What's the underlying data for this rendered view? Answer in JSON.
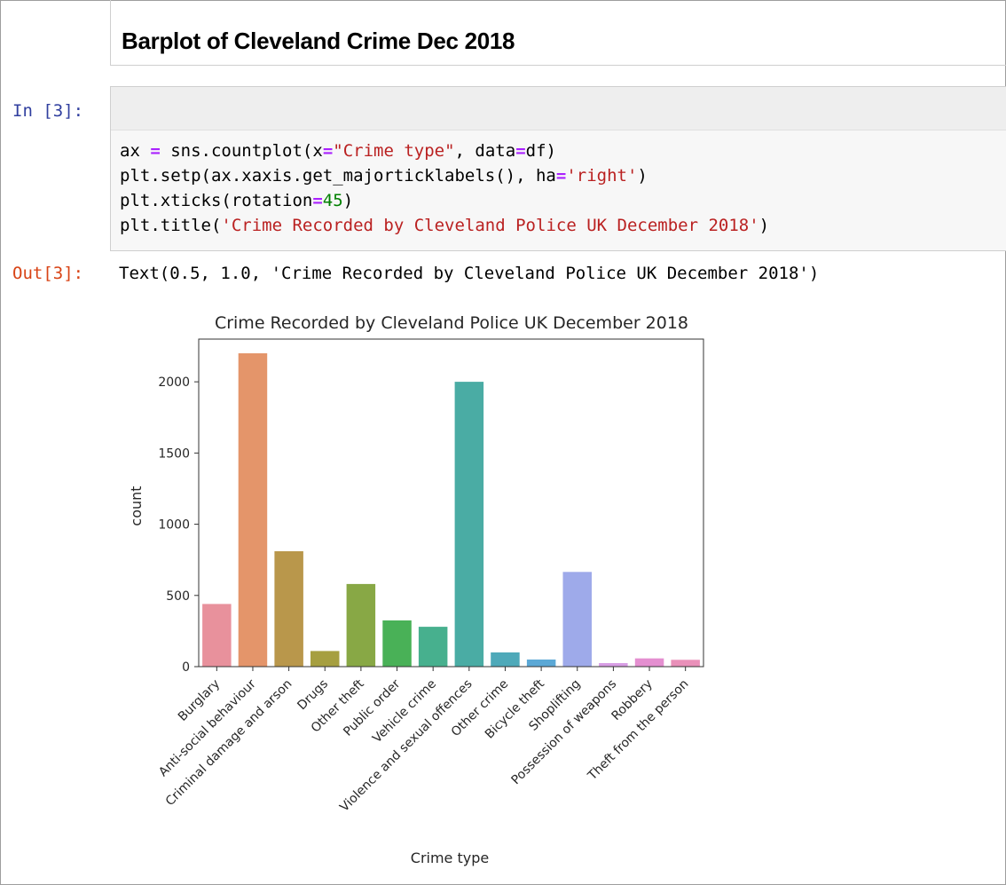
{
  "markdown": {
    "title": "Barplot of Cleveland Crime Dec 2018"
  },
  "cell": {
    "in_prompt": "In [3]:",
    "out_prompt": "Out[3]:",
    "code": {
      "l1": {
        "a": "ax ",
        "op1": "=",
        "b": " sns.countplot(x",
        "op2": "=",
        "s1": "\"Crime type\"",
        "c": ", data",
        "op3": "=",
        "d": "df)"
      },
      "l2": {
        "a": "plt.setp(ax.xaxis.get_majorticklabels(), ha",
        "op1": "=",
        "s1": "'right'",
        "b": ")"
      },
      "l3": {
        "a": "plt.xticks(rotation",
        "op1": "=",
        "n1": "45",
        "b": ")"
      },
      "l4": {
        "a": "plt.title(",
        "s1": "'Crime Recorded by Cleveland Police UK December 2018'",
        "b": ")"
      }
    },
    "output_text": "Text(0.5, 1.0, 'Crime Recorded by Cleveland Police UK December 2018')"
  },
  "chart_data": {
    "type": "bar",
    "title": "Crime Recorded by Cleveland Police UK December 2018",
    "xlabel": "Crime type",
    "ylabel": "count",
    "ylim": [
      0,
      2300
    ],
    "yticks": [
      0,
      500,
      1000,
      1500,
      2000
    ],
    "categories": [
      "Burglary",
      "Anti-social behaviour",
      "Criminal damage and arson",
      "Drugs",
      "Other theft",
      "Public order",
      "Vehicle crime",
      "Violence and sexual offences",
      "Other crime",
      "Bicycle theft",
      "Shoplifting",
      "Possession of weapons",
      "Robbery",
      "Theft from the person"
    ],
    "values": [
      440,
      2200,
      810,
      110,
      580,
      325,
      280,
      2000,
      100,
      50,
      665,
      25,
      58,
      48
    ],
    "colors": [
      "#e8919c",
      "#e4956a",
      "#b9974b",
      "#a69f40",
      "#88a845",
      "#49b157",
      "#47b08e",
      "#4aaca4",
      "#4ea9b9",
      "#5ba8d6",
      "#9eaaea",
      "#d89ee5",
      "#e48fd0",
      "#e990b9"
    ],
    "grid": false
  }
}
